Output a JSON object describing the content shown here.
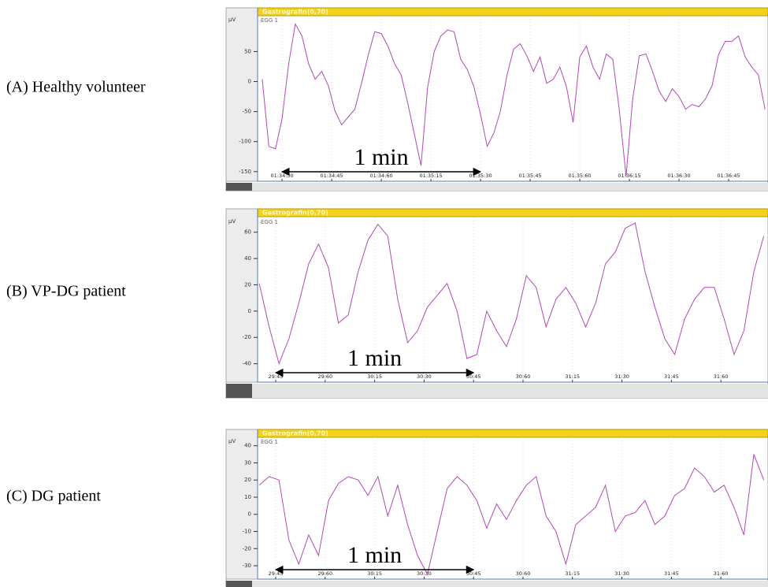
{
  "chart_data": [
    {
      "type": "line",
      "panel_label": "(A) Healthy volunteer",
      "header": "Gastrografin(0,70)",
      "ylabel": "μV",
      "x": [
        5664,
        5666,
        5668,
        5670,
        5672,
        5674,
        5676,
        5678,
        5680,
        5682,
        5684,
        5686,
        5688,
        5690,
        5692,
        5694,
        5696,
        5698,
        5700,
        5702,
        5704,
        5706,
        5708,
        5710,
        5712,
        5714,
        5716,
        5718,
        5720,
        5722,
        5724,
        5726,
        5728,
        5730,
        5732,
        5734,
        5736,
        5738,
        5740,
        5742,
        5744,
        5746,
        5748,
        5750,
        5752,
        5754,
        5756,
        5758,
        5760,
        5762,
        5764,
        5766,
        5768,
        5770,
        5772,
        5774,
        5776,
        5778,
        5780,
        5782,
        5784,
        5786,
        5788,
        5790,
        5792,
        5794,
        5796,
        5798,
        5800,
        5802,
        5804,
        5806,
        5808,
        5810,
        5812,
        5814,
        5816
      ],
      "series": [
        {
          "name": "EGG 1",
          "color": "#b04ab4",
          "values": [
            4,
            -108,
            -112,
            -62,
            30,
            96,
            76,
            30,
            4,
            17,
            -7,
            -49,
            -72,
            -59,
            -46,
            -3,
            43,
            83,
            80,
            59,
            30,
            11,
            -36,
            -88,
            -140,
            -9,
            50,
            76,
            86,
            83,
            37,
            20,
            -9,
            -55,
            -108,
            -86,
            -49,
            11,
            54,
            63,
            43,
            17,
            41,
            -3,
            4,
            24,
            -9,
            -68,
            41,
            59,
            24,
            4,
            46,
            37,
            -49,
            -158,
            -29,
            43,
            46,
            17,
            -16,
            -33,
            -12,
            -25,
            -46,
            -38,
            -42,
            -29,
            -7,
            46,
            67,
            67,
            76,
            41,
            24,
            11,
            -46
          ]
        }
      ],
      "xlim": [
        5662.6,
        5816.9
      ],
      "xticks": [
        {
          "value": 5670,
          "label": "01:34:30"
        },
        {
          "value": 5685,
          "label": "01:34:45"
        },
        {
          "value": 5700,
          "label": "01:34:60"
        },
        {
          "value": 5715,
          "label": "01:35:15"
        },
        {
          "value": 5730,
          "label": "01:35:30"
        },
        {
          "value": 5745,
          "label": "01:35:45"
        },
        {
          "value": 5760,
          "label": "01:35:60"
        },
        {
          "value": 5775,
          "label": "01:36:15"
        },
        {
          "value": 5790,
          "label": "01:36:30"
        },
        {
          "value": 5805,
          "label": "01:36:45"
        }
      ],
      "ylim": [
        -166,
        107
      ],
      "yticks": [
        50,
        0,
        -50,
        -100,
        -150
      ],
      "grid": true,
      "annotation": {
        "text": "1 min",
        "x": [
          5670,
          5730
        ]
      }
    },
    {
      "type": "line",
      "panel_label": "(B) VP-DG patient",
      "header": "Gastrografin(0,70)",
      "ylabel": "μV",
      "x": [
        1780,
        1783,
        1786,
        1789,
        1792,
        1795,
        1798,
        1801,
        1804,
        1807,
        1810,
        1813,
        1816,
        1819,
        1822,
        1825,
        1828,
        1831,
        1834,
        1837,
        1840,
        1843,
        1846,
        1849,
        1852,
        1855,
        1858,
        1861,
        1864,
        1867,
        1870,
        1873,
        1876,
        1879,
        1882,
        1885,
        1888,
        1891,
        1894,
        1897,
        1900,
        1903,
        1906,
        1909,
        1912,
        1915,
        1918,
        1921,
        1924,
        1927,
        1930,
        1933
      ],
      "series": [
        {
          "name": "EGG 1",
          "color": "#b04ab4",
          "values": [
            21,
            -12,
            -40,
            -21,
            6,
            36,
            51,
            33,
            -9,
            -3,
            30,
            54,
            66,
            57,
            9,
            -24,
            -15,
            3,
            12,
            21,
            0,
            -36,
            -33,
            0,
            -15,
            -27,
            -6,
            27,
            18,
            -12,
            9,
            18,
            6,
            -12,
            6,
            36,
            45,
            63,
            67,
            30,
            3,
            -21,
            -33,
            -6,
            9,
            18,
            18,
            -6,
            -33,
            -15,
            30,
            57
          ]
        }
      ],
      "xlim": [
        1779.5,
        1934.3
      ],
      "xticks": [
        {
          "value": 1785,
          "label": "29:45"
        },
        {
          "value": 1800,
          "label": "29:60"
        },
        {
          "value": 1815,
          "label": "30:15"
        },
        {
          "value": 1830,
          "label": "30:30"
        },
        {
          "value": 1845,
          "label": "30:45"
        },
        {
          "value": 1860,
          "label": "30:60"
        },
        {
          "value": 1875,
          "label": "31:15"
        },
        {
          "value": 1890,
          "label": "31:30"
        },
        {
          "value": 1905,
          "label": "31:45"
        },
        {
          "value": 1920,
          "label": "31:60"
        }
      ],
      "ylim": [
        -54,
        70
      ],
      "yticks": [
        60,
        40,
        20,
        0,
        -20,
        -40
      ],
      "grid": true,
      "annotation": {
        "text": "1 min",
        "x": [
          1785,
          1845
        ]
      }
    },
    {
      "type": "line",
      "panel_label": "(C) DG patient",
      "header": "Gastrografin(0,70)",
      "ylabel": "μV",
      "x": [
        1780,
        1783,
        1786,
        1789,
        1792,
        1795,
        1798,
        1801,
        1804,
        1807,
        1810,
        1813,
        1816,
        1819,
        1822,
        1825,
        1828,
        1831,
        1834,
        1837,
        1840,
        1843,
        1846,
        1849,
        1852,
        1855,
        1858,
        1861,
        1864,
        1867,
        1870,
        1873,
        1876,
        1879,
        1882,
        1885,
        1888,
        1891,
        1894,
        1897,
        1900,
        1903,
        1906,
        1909,
        1912,
        1915,
        1918,
        1921,
        1924,
        1927,
        1930,
        1933
      ],
      "series": [
        {
          "name": "EGG 1",
          "color": "#b04ab4",
          "values": [
            17,
            22,
            20,
            -15,
            -29,
            -12,
            -24,
            8,
            18,
            22,
            20,
            11,
            22,
            -1,
            17,
            -6,
            -24,
            -35,
            -10,
            15,
            22,
            17,
            8,
            -8,
            6,
            -3,
            8,
            17,
            22,
            -1,
            -10,
            -29,
            -6,
            -1,
            4,
            17,
            -10,
            -1,
            1,
            8,
            -6,
            -1,
            11,
            15,
            27,
            22,
            13,
            17,
            4,
            -12,
            35,
            20
          ]
        }
      ],
      "xlim": [
        1779.5,
        1934.3
      ],
      "xticks": [
        {
          "value": 1785,
          "label": "29:45"
        },
        {
          "value": 1800,
          "label": "29:60"
        },
        {
          "value": 1815,
          "label": "30:15"
        },
        {
          "value": 1830,
          "label": "30:30"
        },
        {
          "value": 1845,
          "label": "30:45"
        },
        {
          "value": 1860,
          "label": "30:60"
        },
        {
          "value": 1875,
          "label": "31:15"
        },
        {
          "value": 1890,
          "label": "31:30"
        },
        {
          "value": 1905,
          "label": "31:45"
        },
        {
          "value": 1920,
          "label": "31:60"
        }
      ],
      "ylim": [
        -37.8,
        44
      ],
      "yticks": [
        40,
        30,
        20,
        10,
        0,
        -10,
        -20,
        -30
      ],
      "grid": true,
      "annotation": {
        "text": "1 min",
        "x": [
          1785,
          1845
        ]
      }
    }
  ]
}
